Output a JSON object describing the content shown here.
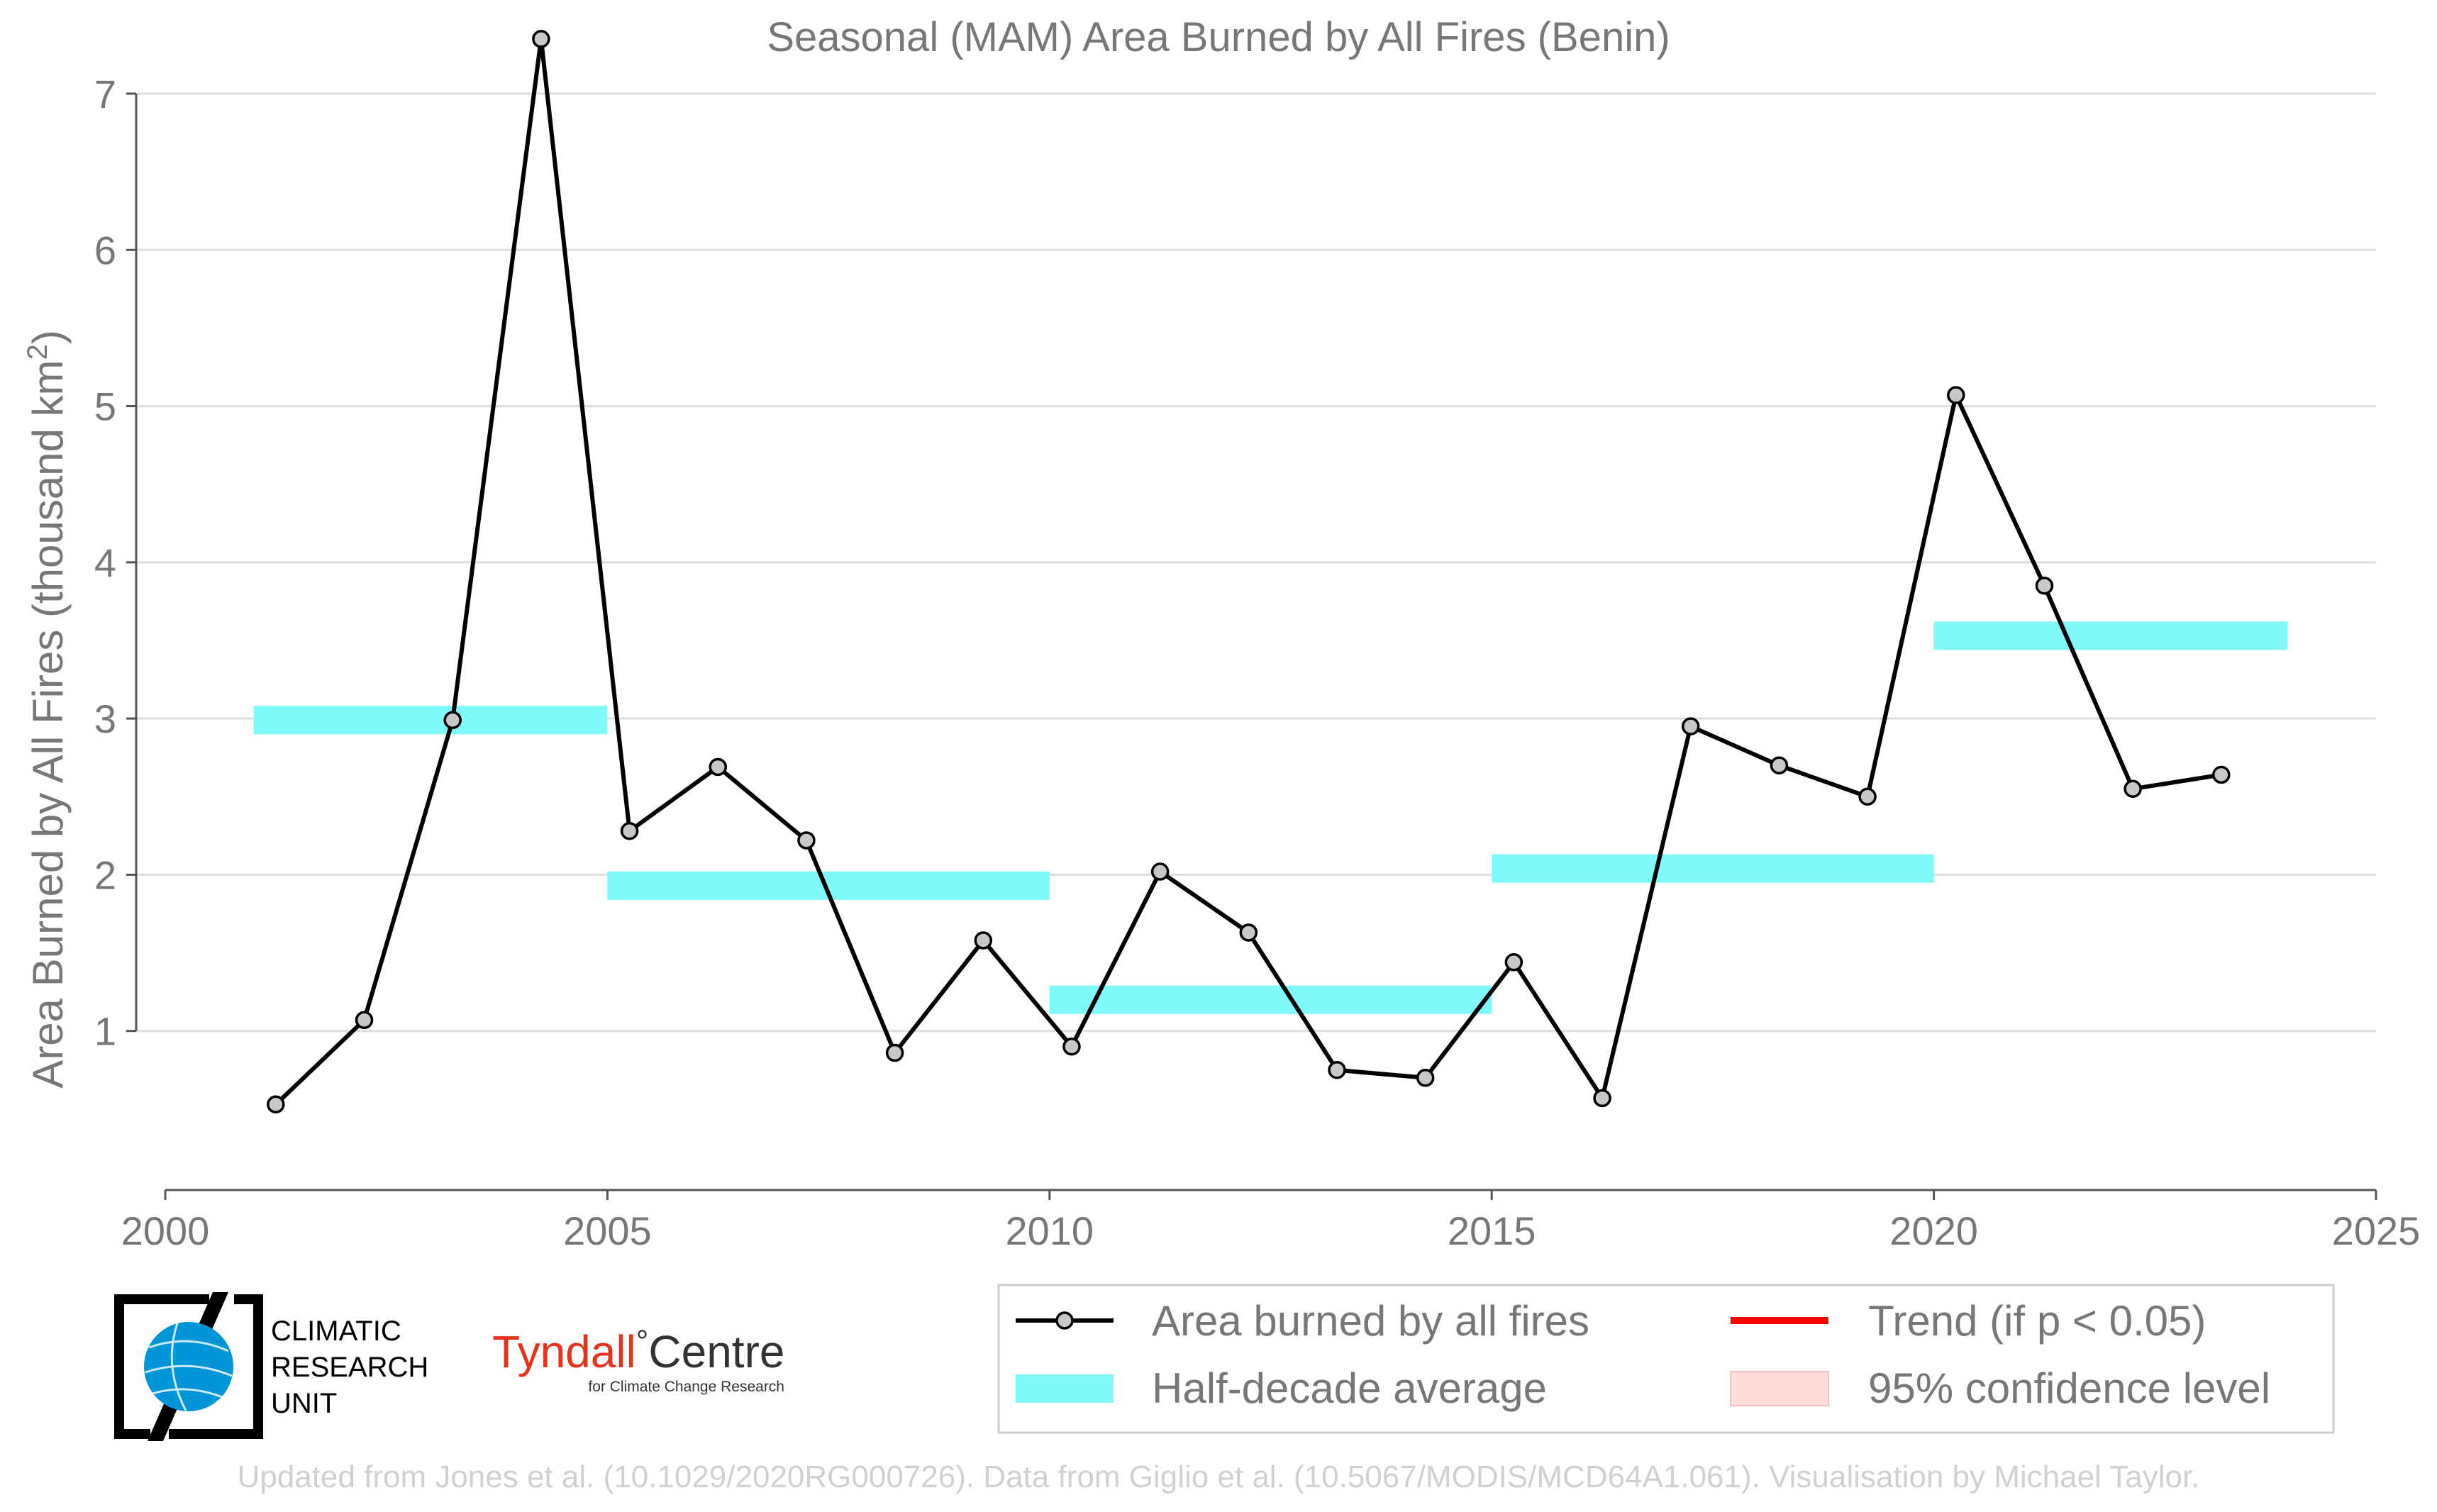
{
  "colors": {
    "line": "#000000",
    "marker_fill": "#c8c8c8",
    "half_decade": "#7ff9fa",
    "trend": "#ff0000",
    "confidence": "#ffdddd",
    "grid": "#dddddd",
    "text": "#777777",
    "credit": "#d0d0d0",
    "tyndall_red": "#e8321e",
    "cru_blue": "#0095d6"
  },
  "chart_data": {
    "type": "line",
    "title": "Seasonal (MAM) Area Burned by All Fires (Benin)",
    "xlabel": "",
    "ylabel": "Area Burned by All Fires (thousand km",
    "ylabel_sup": "2",
    "ylabel_end": ")",
    "xlim": [
      2000,
      2025
    ],
    "ylim": [
      0,
      7.1
    ],
    "xticks": [
      "2000",
      "2005",
      "2010",
      "2015",
      "2020",
      "2025"
    ],
    "yticks": [
      "1",
      "2",
      "3",
      "4",
      "5",
      "6",
      "7"
    ],
    "grid": true,
    "series": [
      {
        "name": "Area burned by all fires",
        "x": [
          2001.25,
          2002.25,
          2003.25,
          2004.25,
          2005.25,
          2006.25,
          2007.25,
          2008.25,
          2009.25,
          2010.25,
          2011.25,
          2012.25,
          2013.25,
          2014.25,
          2015.25,
          2016.25,
          2017.25,
          2018.25,
          2019.25,
          2020.25,
          2021.25,
          2022.25,
          2023.25
        ],
        "values": [
          0.53,
          1.07,
          2.99,
          7.35,
          2.28,
          2.69,
          2.22,
          0.86,
          1.58,
          0.9,
          2.02,
          1.63,
          0.75,
          0.7,
          1.44,
          0.57,
          2.95,
          2.7,
          2.5,
          5.07,
          3.85,
          2.55,
          2.64
        ]
      }
    ],
    "half_decade_average": {
      "name": "Half-decade average",
      "segments": [
        {
          "start": 2001,
          "end": 2005,
          "value": 2.99
        },
        {
          "start": 2005,
          "end": 2010,
          "value": 1.93
        },
        {
          "start": 2010,
          "end": 2015,
          "value": 1.2
        },
        {
          "start": 2015,
          "end": 2020,
          "value": 2.04
        },
        {
          "start": 2020,
          "end": 2024,
          "value": 3.53
        }
      ]
    },
    "legend": {
      "placement": "bottom-right",
      "entries": [
        "Area burned by all fires",
        "Half-decade average",
        "Trend (if p < 0.05)",
        "95% confidence level"
      ]
    }
  },
  "logos": {
    "cru": [
      "CLIMATIC",
      "RESEARCH",
      "UNIT"
    ],
    "tyndall_name": "Tyndall",
    "tyndall_degree": "°",
    "tyndall_centre": "Centre",
    "tyndall_sub": "for Climate Change Research"
  },
  "credit": "Updated from Jones et al. (10.1029/2020RG000726). Data from Giglio et al. (10.5067/MODIS/MCD64A1.061). Visualisation by Michael Taylor."
}
